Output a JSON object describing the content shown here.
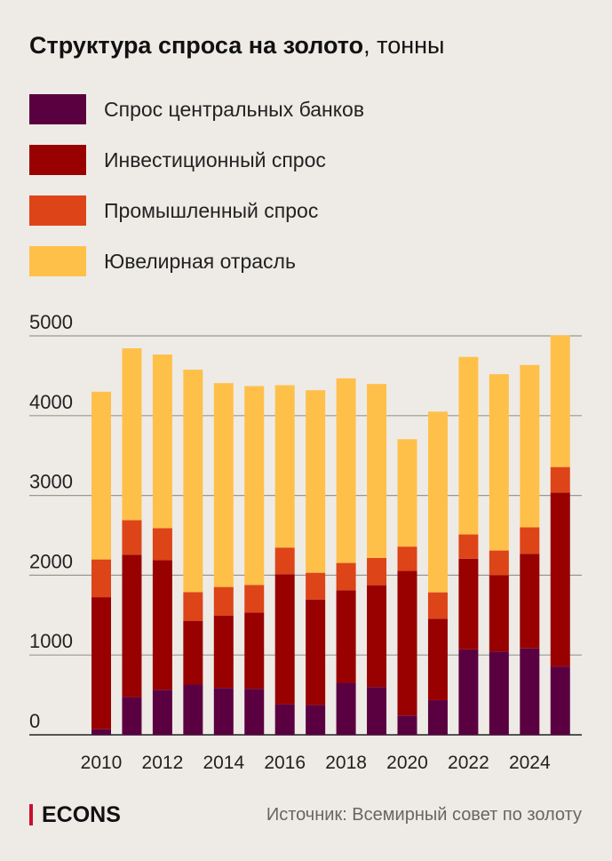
{
  "chart_data": {
    "type": "bar",
    "stacked": true,
    "title": "Структура спроса на золото",
    "title_suffix": ", тонны",
    "xlabel": "",
    "ylabel": "",
    "ylim": [
      0,
      5000
    ],
    "yticks": [
      0,
      1000,
      2000,
      3000,
      4000,
      5000
    ],
    "ytick_labels": [
      "0",
      "1000",
      "2000",
      "3000",
      "4000",
      "5000"
    ],
    "grid": true,
    "legend_position": "top-left",
    "categories": [
      2010,
      2011,
      2012,
      2013,
      2014,
      2015,
      2016,
      2017,
      2018,
      2019,
      2020,
      2021,
      2022,
      2023,
      2024,
      2025
    ],
    "xtick_labels": [
      "2010",
      "2012",
      "2014",
      "2016",
      "2018",
      "2020",
      "2022",
      "2024"
    ],
    "series": [
      {
        "name": "Спрос центральных банков",
        "color": "#5a0040",
        "values": [
          70,
          472,
          565,
          629,
          588,
          577,
          383,
          372,
          651,
          599,
          242,
          435,
          1071,
          1045,
          1083,
          856
        ]
      },
      {
        "name": "Инвестиционный спрос",
        "color": "#990000",
        "values": [
          1655,
          1786,
          1626,
          800,
          904,
          956,
          1630,
          1324,
          1161,
          1276,
          1812,
          1020,
          1135,
          956,
          1186,
          2180
        ]
      },
      {
        "name": "Промышленный спрос",
        "color": "#dd4418",
        "values": [
          473,
          432,
          398,
          360,
          361,
          346,
          334,
          335,
          342,
          342,
          305,
          331,
          305,
          309,
          331,
          320
        ]
      },
      {
        "name": "Ювелирная отрасль",
        "color": "#ffc04a",
        "values": [
          2102,
          2154,
          2177,
          2787,
          2555,
          2492,
          2035,
          2288,
          2314,
          2180,
          1346,
          2265,
          2225,
          2210,
          2035,
          1651
        ]
      }
    ]
  },
  "footer": {
    "brand": "ECONS",
    "source": "Источник: Всемирный совет по золоту"
  }
}
